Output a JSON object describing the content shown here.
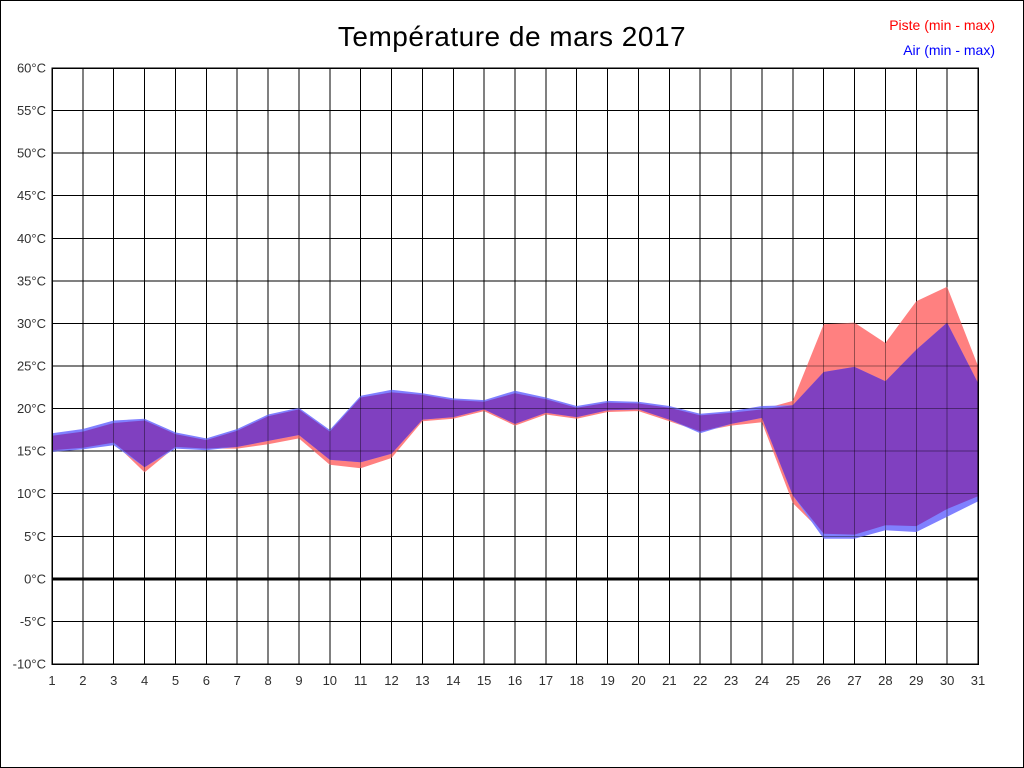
{
  "page": {
    "title": "Température de mars 2017"
  },
  "legend": {
    "piste_label": "Piste (min - max)",
    "piste_color": "#ff0000",
    "air_label": "Air (min - max)",
    "air_color": "#0000ff"
  },
  "chart_data": {
    "type": "area",
    "title": "Température de mars 2017",
    "xlabel": "",
    "ylabel": "",
    "x": [
      1,
      2,
      3,
      4,
      5,
      6,
      7,
      8,
      9,
      10,
      11,
      12,
      13,
      14,
      15,
      16,
      17,
      18,
      19,
      20,
      21,
      22,
      23,
      24,
      25,
      26,
      27,
      28,
      29,
      30,
      31
    ],
    "x_tick_labels": [
      "1",
      "2",
      "3",
      "4",
      "5",
      "6",
      "7",
      "8",
      "9",
      "10",
      "11",
      "12",
      "13",
      "14",
      "15",
      "16",
      "17",
      "18",
      "19",
      "20",
      "21",
      "22",
      "23",
      "24",
      "25",
      "26",
      "27",
      "28",
      "29",
      "30",
      "31"
    ],
    "ylim": [
      -10,
      60
    ],
    "y_ticks": [
      -10,
      -5,
      0,
      5,
      10,
      15,
      20,
      25,
      30,
      35,
      40,
      45,
      50,
      55,
      60
    ],
    "y_tick_labels": [
      "-10°C",
      "-5°C",
      "0°C",
      "5°C",
      "10°C",
      "15°C",
      "20°C",
      "25°C",
      "30°C",
      "35°C",
      "40°C",
      "45°C",
      "50°C",
      "55°C",
      "60°C"
    ],
    "grid": true,
    "zero_line": true,
    "legend_position": "top-right",
    "overlap_color": "#8040c0",
    "series": [
      {
        "name": "Piste (min - max)",
        "fill_color": "#ff8080",
        "legend_color": "#ff0000",
        "min": [
          15.1,
          15.4,
          16.0,
          12.5,
          15.5,
          15.3,
          15.3,
          15.8,
          16.5,
          13.4,
          13.0,
          14.2,
          18.5,
          18.8,
          19.7,
          18.0,
          19.3,
          18.8,
          19.6,
          19.7,
          18.5,
          17.3,
          18.0,
          18.4,
          8.9,
          5.3,
          5.2,
          6.3,
          6.2,
          8.2,
          9.7
        ],
        "max": [
          16.8,
          17.3,
          18.3,
          18.6,
          17.0,
          16.3,
          17.4,
          19.1,
          19.9,
          17.3,
          21.3,
          21.9,
          21.6,
          21.0,
          20.8,
          21.8,
          21.1,
          20.1,
          20.7,
          20.6,
          20.1,
          19.2,
          19.5,
          19.9,
          20.9,
          29.9,
          30.1,
          27.7,
          32.6,
          34.3,
          25.0
        ]
      },
      {
        "name": "Air (min - max)",
        "fill_color": "#8080ff",
        "legend_color": "#0000ff",
        "min": [
          14.9,
          15.2,
          15.7,
          13.1,
          15.3,
          15.1,
          15.5,
          16.2,
          16.9,
          14.0,
          13.7,
          14.7,
          18.7,
          19.0,
          19.9,
          18.2,
          19.5,
          19.0,
          19.8,
          19.9,
          18.7,
          17.1,
          18.2,
          18.9,
          9.8,
          4.7,
          4.7,
          5.7,
          5.5,
          7.3,
          9.1
        ],
        "max": [
          17.1,
          17.6,
          18.6,
          18.8,
          17.2,
          16.5,
          17.6,
          19.3,
          20.1,
          17.5,
          21.5,
          22.2,
          21.8,
          21.2,
          21.0,
          22.1,
          21.3,
          20.3,
          20.9,
          20.8,
          20.3,
          19.4,
          19.7,
          20.3,
          20.4,
          24.3,
          24.9,
          23.2,
          26.9,
          30.1,
          23.0
        ]
      }
    ]
  }
}
